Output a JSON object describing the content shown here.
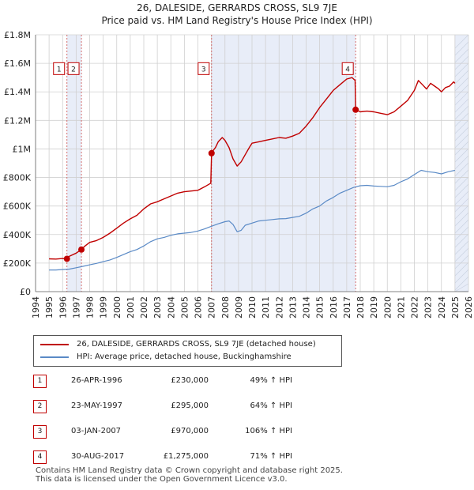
{
  "header": {
    "title": "26, DALESIDE, GERRARDS CROSS, SL9 7JE",
    "subtitle": "Price paid vs. HM Land Registry's House Price Index (HPI)"
  },
  "legend": {
    "property_label": "26, DALESIDE, GERRARDS CROSS, SL9 7JE (detached house)",
    "hpi_label": "HPI: Average price, detached house, Buckinghamshire"
  },
  "transactions": [
    {
      "num": "1",
      "date": "26-APR-1996",
      "price": "£230,000",
      "hpi": "49% ↑ HPI"
    },
    {
      "num": "2",
      "date": "23-MAY-1997",
      "price": "£295,000",
      "hpi": "64% ↑ HPI"
    },
    {
      "num": "3",
      "date": "03-JAN-2007",
      "price": "£970,000",
      "hpi": "106% ↑ HPI"
    },
    {
      "num": "4",
      "date": "30-AUG-2017",
      "price": "£1,275,000",
      "hpi": "71% ↑ HPI"
    }
  ],
  "footer": {
    "line1": "Contains HM Land Registry data © Crown copyright and database right 2025.",
    "line2": "This data is licensed under the Open Government Licence v3.0."
  },
  "colors": {
    "property": "#c00000",
    "hpi": "#5a8ac6",
    "shade": "#e8edf8",
    "grid": "#d0d0d0",
    "marker_line": "#d06060"
  },
  "chart_data": {
    "type": "line",
    "xlim": [
      1994,
      2026
    ],
    "ylim": [
      0,
      1800000
    ],
    "x_ticks": [
      "1994",
      "1995",
      "1996",
      "1997",
      "1998",
      "1999",
      "2000",
      "2001",
      "2002",
      "2003",
      "2004",
      "2005",
      "2006",
      "2007",
      "2008",
      "2009",
      "2010",
      "2011",
      "2012",
      "2013",
      "2014",
      "2015",
      "2016",
      "2017",
      "2018",
      "2019",
      "2020",
      "2021",
      "2022",
      "2023",
      "2024",
      "2025",
      "2026"
    ],
    "y_ticks": [
      {
        "value": 0,
        "label": "£0"
      },
      {
        "value": 200000,
        "label": "£200K"
      },
      {
        "value": 400000,
        "label": "£400K"
      },
      {
        "value": 600000,
        "label": "£600K"
      },
      {
        "value": 800000,
        "label": "£800K"
      },
      {
        "value": 1000000,
        "label": "£1M"
      },
      {
        "value": 1200000,
        "label": "£1.2M"
      },
      {
        "value": 1400000,
        "label": "£1.4M"
      },
      {
        "value": 1600000,
        "label": "£1.6M"
      },
      {
        "value": 1800000,
        "label": "£1.8M"
      }
    ],
    "shaded_ranges": [
      [
        1996.32,
        1997.39
      ],
      [
        2007.01,
        2017.66
      ],
      [
        2025.0,
        2026.0
      ]
    ],
    "sale_markers": [
      {
        "label": "1",
        "x": 1996.32,
        "y": 230000
      },
      {
        "label": "2",
        "x": 1997.39,
        "y": 295000
      },
      {
        "label": "3",
        "x": 2007.01,
        "y": 970000
      },
      {
        "label": "4",
        "x": 2017.66,
        "y": 1275000
      }
    ],
    "marker_box_y": 1560000,
    "series": [
      {
        "name": "26, DALESIDE, GERRARDS CROSS, SL9 7JE (detached house)",
        "x": [
          1995.0,
          1995.5,
          1996.0,
          1996.32,
          1996.5,
          1997.0,
          1997.39,
          1997.6,
          1998.0,
          1998.5,
          1999.0,
          1999.5,
          2000.0,
          2000.5,
          2001.0,
          2001.5,
          2002.0,
          2002.5,
          2003.0,
          2003.5,
          2004.0,
          2004.5,
          2005.0,
          2005.5,
          2006.0,
          2006.5,
          2006.95,
          2007.01,
          2007.1,
          2007.3,
          2007.5,
          2007.8,
          2008.0,
          2008.3,
          2008.6,
          2008.9,
          2009.2,
          2009.5,
          2009.8,
          2010.0,
          2010.5,
          2011.0,
          2011.5,
          2012.0,
          2012.5,
          2013.0,
          2013.5,
          2014.0,
          2014.5,
          2015.0,
          2015.5,
          2016.0,
          2016.5,
          2017.0,
          2017.4,
          2017.62,
          2017.66,
          2017.8,
          2018.0,
          2018.5,
          2019.0,
          2019.5,
          2020.0,
          2020.5,
          2021.0,
          2021.5,
          2022.0,
          2022.3,
          2022.6,
          2022.9,
          2023.2,
          2023.5,
          2023.8,
          2024.0,
          2024.3,
          2024.6,
          2024.9,
          2025.0
        ],
        "values": [
          230000,
          228000,
          232000,
          230000,
          248000,
          270000,
          295000,
          315000,
          345000,
          358000,
          380000,
          410000,
          445000,
          480000,
          510000,
          535000,
          580000,
          615000,
          630000,
          650000,
          670000,
          690000,
          700000,
          705000,
          710000,
          735000,
          760000,
          970000,
          985000,
          1010000,
          1050000,
          1080000,
          1060000,
          1010000,
          930000,
          880000,
          910000,
          960000,
          1010000,
          1040000,
          1050000,
          1060000,
          1070000,
          1080000,
          1075000,
          1090000,
          1110000,
          1160000,
          1220000,
          1290000,
          1350000,
          1410000,
          1450000,
          1490000,
          1500000,
          1480000,
          1275000,
          1270000,
          1260000,
          1265000,
          1260000,
          1250000,
          1240000,
          1260000,
          1300000,
          1340000,
          1410000,
          1480000,
          1450000,
          1420000,
          1460000,
          1440000,
          1420000,
          1400000,
          1430000,
          1440000,
          1470000,
          1460000
        ]
      },
      {
        "name": "HPI: Average price, detached house, Buckinghamshire",
        "x": [
          1995.0,
          1995.5,
          1996.0,
          1996.5,
          1997.0,
          1997.5,
          1998.0,
          1998.5,
          1999.0,
          1999.5,
          2000.0,
          2000.5,
          2001.0,
          2001.5,
          2002.0,
          2002.5,
          2003.0,
          2003.5,
          2004.0,
          2004.5,
          2005.0,
          2005.5,
          2006.0,
          2006.5,
          2007.0,
          2007.5,
          2008.0,
          2008.3,
          2008.6,
          2008.9,
          2009.2,
          2009.5,
          2010.0,
          2010.5,
          2011.0,
          2011.5,
          2012.0,
          2012.5,
          2013.0,
          2013.5,
          2014.0,
          2014.5,
          2015.0,
          2015.5,
          2016.0,
          2016.5,
          2017.0,
          2017.5,
          2018.0,
          2018.5,
          2019.0,
          2019.5,
          2020.0,
          2020.5,
          2021.0,
          2021.5,
          2022.0,
          2022.5,
          2023.0,
          2023.5,
          2024.0,
          2024.5,
          2025.0
        ],
        "values": [
          152000,
          152000,
          155000,
          158000,
          167000,
          177000,
          188000,
          198000,
          210000,
          222000,
          240000,
          260000,
          280000,
          295000,
          320000,
          350000,
          370000,
          380000,
          395000,
          405000,
          410000,
          415000,
          425000,
          440000,
          458000,
          475000,
          490000,
          495000,
          470000,
          420000,
          430000,
          465000,
          480000,
          495000,
          500000,
          505000,
          510000,
          512000,
          520000,
          528000,
          550000,
          580000,
          600000,
          635000,
          660000,
          690000,
          710000,
          730000,
          742000,
          745000,
          740000,
          738000,
          735000,
          745000,
          770000,
          790000,
          820000,
          850000,
          840000,
          835000,
          825000,
          840000,
          850000
        ]
      }
    ]
  }
}
